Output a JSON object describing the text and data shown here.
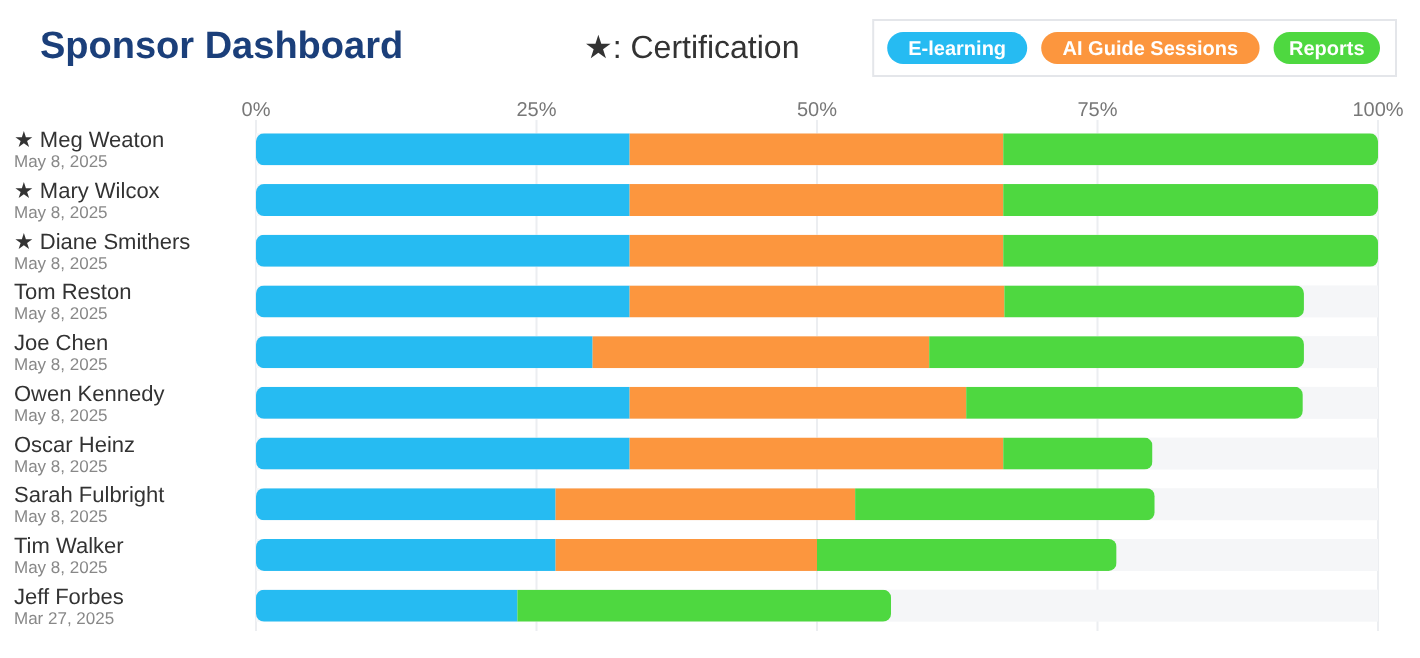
{
  "chart_data": {
    "type": "bar",
    "title": "Sponsor Dashboard",
    "orientation": "horizontal",
    "stacked": true,
    "annotations": [
      "★: Certification"
    ],
    "categories": [
      "★ Meg Weaton\nMay 8, 2025",
      "★ Mary Wilcox\nMay 8, 2025",
      "★ Diane Smithers\nMay 8, 2025",
      "Tom Reston\nMay 8, 2025",
      "Joe Chen\nMay 8, 2025",
      "Owen Kennedy\nMay 8, 2025",
      "Oscar Heinz\nMay 8, 2025",
      "Sarah Fulbright\nMay 8, 2025",
      "Tim Walker\nMay 8, 2025",
      "Jeff Forbes\nMar 27, 2025"
    ],
    "series": [
      {
        "name": "E-learning",
        "color": "#26bbf2",
        "values": [
          33.3,
          33.3,
          33.3,
          33.3,
          30,
          33.3,
          33.3,
          26.7,
          26.7,
          23.3
        ]
      },
      {
        "name": "AI Guide Sessions",
        "color": "#fc963e",
        "values": [
          33.3,
          33.3,
          33.3,
          33.4,
          30,
          30,
          33.3,
          26.7,
          23.3,
          0
        ]
      },
      {
        "name": "Reports",
        "color": "#4ed840",
        "values": [
          33.4,
          33.4,
          33.4,
          26.7,
          33.4,
          30,
          13.3,
          26.7,
          26.7,
          33.3
        ]
      }
    ],
    "xlim": [
      0,
      100
    ],
    "xticks": [
      {
        "value": 0,
        "label": "0%"
      },
      {
        "value": 25,
        "label": "25%"
      },
      {
        "value": 50,
        "label": "50%"
      },
      {
        "value": 75,
        "label": "75%"
      },
      {
        "value": 100,
        "label": "100%"
      }
    ],
    "grid": "x",
    "legend": "top right"
  }
}
